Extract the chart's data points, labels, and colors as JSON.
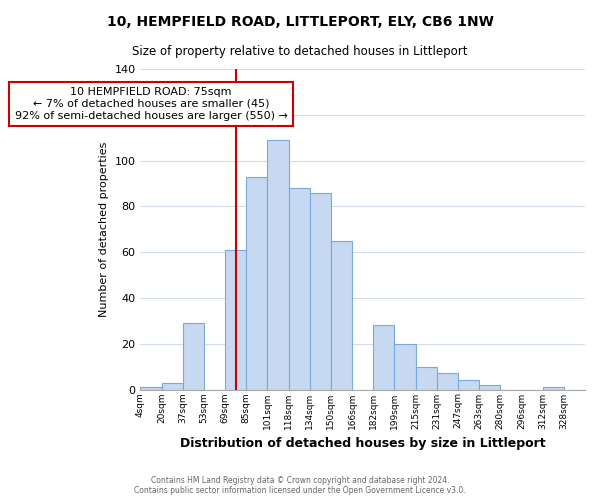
{
  "title": "10, HEMPFIELD ROAD, LITTLEPORT, ELY, CB6 1NW",
  "subtitle": "Size of property relative to detached houses in Littleport",
  "xlabel": "Distribution of detached houses by size in Littleport",
  "ylabel": "Number of detached properties",
  "bar_color": "#c6d9f0",
  "bar_edge_color": "#7aaadd",
  "background_color": "#ffffff",
  "grid_color": "#d0dce8",
  "bin_labels": [
    "4sqm",
    "20sqm",
    "37sqm",
    "53sqm",
    "69sqm",
    "85sqm",
    "101sqm",
    "118sqm",
    "134sqm",
    "150sqm",
    "166sqm",
    "182sqm",
    "199sqm",
    "215sqm",
    "231sqm",
    "247sqm",
    "263sqm",
    "280sqm",
    "296sqm",
    "312sqm",
    "328sqm"
  ],
  "counts": [
    1,
    3,
    29,
    0,
    61,
    93,
    109,
    88,
    86,
    65,
    0,
    28,
    20,
    10,
    7,
    4,
    2,
    0,
    0,
    1,
    0
  ],
  "ylim": [
    0,
    140
  ],
  "yticks": [
    0,
    20,
    40,
    60,
    80,
    100,
    120,
    140
  ],
  "property_line_idx": 4.53,
  "property_line_color": "#cc0000",
  "annotation_text": "10 HEMPFIELD ROAD: 75sqm\n← 7% of detached houses are smaller (45)\n92% of semi-detached houses are larger (550) →",
  "annotation_box_color": "#ffffff",
  "annotation_box_edge_color": "#cc0000",
  "footer_line1": "Contains HM Land Registry data © Crown copyright and database right 2024.",
  "footer_line2": "Contains public sector information licensed under the Open Government Licence v3.0."
}
